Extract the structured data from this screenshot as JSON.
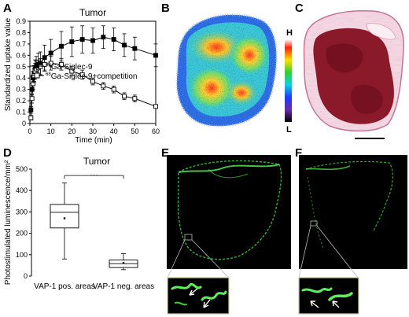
{
  "panels": {
    "a": "A",
    "b": "B",
    "c": "C",
    "d": "D",
    "e": "E",
    "f": "F"
  },
  "colorbar": {
    "high": "H",
    "low": "L"
  },
  "chart_data": [
    {
      "type": "line",
      "title": "Tumor",
      "xlabel": "Time (min)",
      "ylabel": "Standardized uptake value",
      "xlim": [
        0,
        60
      ],
      "ylim": [
        0,
        0.9
      ],
      "xticks": [
        "0",
        "10",
        "20",
        "30",
        "40",
        "50",
        "60"
      ],
      "yticks": [
        "0",
        "0.1",
        "0.2",
        "0.3",
        "0.4",
        "0.5",
        "0.6",
        "0.7",
        "0.8",
        "0.9"
      ],
      "legend_position": "middle-left",
      "series": [
        {
          "name": "68Ga-Siglec-9",
          "name_prefix": "68",
          "name_rest": "Ga-Siglec-9",
          "marker": "filled-square",
          "x": [
            0.5,
            1,
            1.5,
            2,
            2.5,
            3,
            4,
            5,
            7,
            10,
            15,
            20,
            25,
            30,
            35,
            40,
            45,
            50,
            60
          ],
          "y": [
            0.12,
            0.3,
            0.4,
            0.44,
            0.48,
            0.5,
            0.52,
            0.53,
            0.58,
            0.62,
            0.68,
            0.72,
            0.74,
            0.73,
            0.76,
            0.74,
            0.69,
            0.66,
            0.6
          ],
          "err": [
            0.03,
            0.05,
            0.06,
            0.07,
            0.08,
            0.09,
            0.1,
            0.1,
            0.11,
            0.12,
            0.13,
            0.13,
            0.12,
            0.11,
            0.1,
            0.1,
            0.1,
            0.1,
            0.1
          ]
        },
        {
          "name": "68Ga-Siglec-9+competition",
          "name_prefix": "68",
          "name_rest": "Ga-Siglec-9+competition",
          "marker": "open-square",
          "x": [
            0.5,
            1,
            1.5,
            2,
            2.5,
            3,
            4,
            5,
            7,
            10,
            15,
            20,
            25,
            30,
            35,
            40,
            45,
            50,
            60
          ],
          "y": [
            0.05,
            0.22,
            0.35,
            0.42,
            0.46,
            0.48,
            0.49,
            0.5,
            0.52,
            0.53,
            0.52,
            0.46,
            0.43,
            0.37,
            0.33,
            0.3,
            0.24,
            0.22,
            0.15
          ],
          "err": [
            0.02,
            0.04,
            0.05,
            0.06,
            0.07,
            0.07,
            0.07,
            0.07,
            0.06,
            0.06,
            0.05,
            0.04,
            0.04,
            0.03,
            0.03,
            0.03,
            0.03,
            0.03,
            0.01
          ]
        }
      ]
    },
    {
      "type": "box",
      "title": "Tumor",
      "ylabel": "Photostimulated luminescence/mm²",
      "ylim": [
        0,
        500
      ],
      "yticks": [
        "0",
        "100",
        "200",
        "300",
        "400",
        "500"
      ],
      "significance": "···",
      "categories": [
        "VAP-1 pos. areas",
        "VAP-1 neg. areas"
      ],
      "boxes": [
        {
          "min": 80,
          "q1": 225,
          "median": 298,
          "q3": 335,
          "max": 435,
          "mean": 270
        },
        {
          "min": 30,
          "q1": 40,
          "median": 58,
          "q3": 75,
          "max": 105,
          "mean": 62
        }
      ]
    }
  ]
}
